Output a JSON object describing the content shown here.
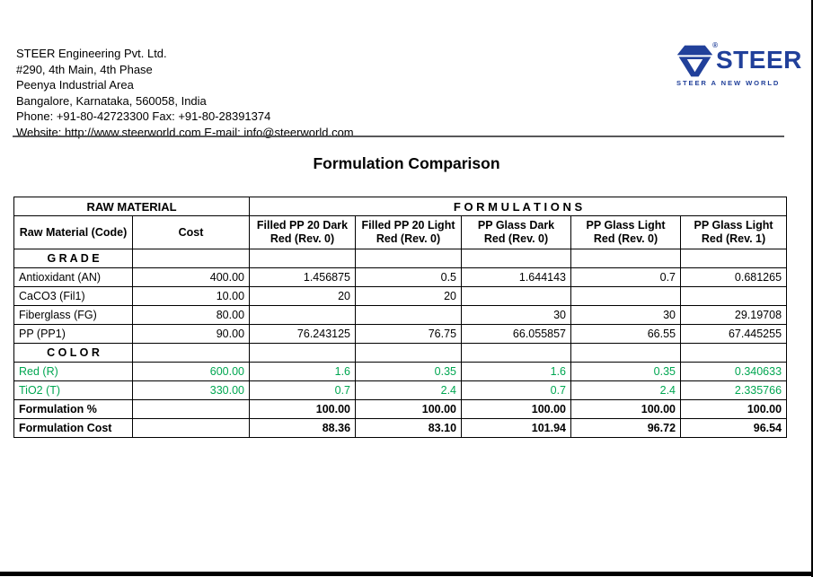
{
  "company": {
    "lines": [
      "STEER Engineering Pvt. Ltd.",
      "#290, 4th Main, 4th Phase",
      "Peenya Industrial Area",
      "Bangalore, Karnataka, 560058, India",
      "Phone: +91-80-42723300 Fax: +91-80-28391374",
      "Website: http://www.steerworld.com E-mail: info@steerworld.com"
    ]
  },
  "logo": {
    "wordmark": "STEER",
    "tagline": "STEER A NEW WORLD",
    "registered_mark": "®"
  },
  "page": {
    "title": "Formulation Comparison"
  },
  "table": {
    "group_headers": {
      "raw_material": "RAW MATERIAL",
      "formulations": "F O R M U L A T I O N S"
    },
    "column_headers": [
      "Raw Material (Code)",
      "Cost",
      "Filled PP 20 Dark Red (Rev. 0)",
      "Filled PP 20 Light Red (Rev. 0)",
      "PP Glass Dark Red (Rev. 0)",
      "PP Glass Light Red (Rev. 0)",
      "PP Glass Light Red (Rev. 1)"
    ],
    "rows": [
      {
        "type": "section",
        "cells": [
          "G R A D E",
          "",
          "",
          "",
          "",
          "",
          ""
        ]
      },
      {
        "type": "data",
        "cells": [
          "Antioxidant (AN)",
          "400.00",
          "1.456875",
          "0.5",
          "1.644143",
          "0.7",
          "0.681265"
        ]
      },
      {
        "type": "data",
        "cells": [
          "CaCO3 (Fil1)",
          "10.00",
          "20",
          "20",
          "",
          "",
          ""
        ]
      },
      {
        "type": "data",
        "cells": [
          "Fiberglass (FG)",
          "80.00",
          "",
          "",
          "30",
          "30",
          "29.19708"
        ]
      },
      {
        "type": "data",
        "cells": [
          "PP (PP1)",
          "90.00",
          "76.243125",
          "76.75",
          "66.055857",
          "66.55",
          "67.445255"
        ]
      },
      {
        "type": "section",
        "cells": [
          "C O L O R",
          "",
          "",
          "",
          "",
          "",
          ""
        ]
      },
      {
        "type": "green",
        "cells": [
          "Red (R)",
          "600.00",
          "1.6",
          "0.35",
          "1.6",
          "0.35",
          "0.340633"
        ]
      },
      {
        "type": "green",
        "cells": [
          "TiO2 (T)",
          "330.00",
          "0.7",
          "2.4",
          "0.7",
          "2.4",
          "2.335766"
        ]
      },
      {
        "type": "bold",
        "cells": [
          "Formulation %",
          "",
          "100.00",
          "100.00",
          "100.00",
          "100.00",
          "100.00"
        ]
      },
      {
        "type": "bold",
        "cells": [
          "Formulation Cost",
          "",
          "88.36",
          "83.10",
          "101.94",
          "96.72",
          "96.54"
        ]
      }
    ]
  },
  "colors": {
    "logo_blue": "#21409A",
    "green_text": "#00A651",
    "border_black": "#000000"
  }
}
